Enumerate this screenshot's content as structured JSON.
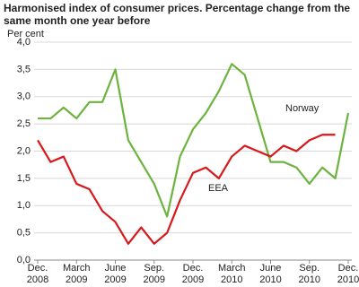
{
  "chart_data": {
    "type": "line",
    "title": "Harmonised index of consumer prices. Percentage change from the same month one year before",
    "y_label": "Per cent",
    "categories": [
      "Dec.\n2008",
      null,
      null,
      "March\n2009",
      null,
      null,
      "June\n2009",
      null,
      null,
      "Sep.\n2009",
      null,
      null,
      "Dec.\n2009",
      null,
      null,
      "March\n2010",
      null,
      null,
      "June\n2010",
      null,
      null,
      "Sep.\n2010",
      null,
      null,
      "Dec.\n2010"
    ],
    "series": [
      {
        "name": "Norway",
        "color": "#6cb33f",
        "values": [
          2.6,
          2.6,
          2.8,
          2.6,
          2.9,
          2.9,
          3.5,
          2.2,
          1.8,
          1.4,
          0.8,
          1.9,
          2.4,
          2.7,
          3.1,
          3.6,
          3.4,
          2.6,
          1.8,
          1.8,
          1.7,
          1.4,
          1.7,
          1.5,
          2.7
        ]
      },
      {
        "name": "EEA",
        "color": "#d7191c",
        "values": [
          2.2,
          1.8,
          1.9,
          1.4,
          1.3,
          0.9,
          0.7,
          0.3,
          0.6,
          0.3,
          0.5,
          1.1,
          1.6,
          1.7,
          1.5,
          1.9,
          2.1,
          2.0,
          1.9,
          2.1,
          2.0,
          2.2,
          2.3,
          2.3,
          null
        ]
      }
    ],
    "ylim": [
      0,
      4
    ],
    "yticks": [
      {
        "value": 0,
        "label": "0,0"
      },
      {
        "value": 0.5,
        "label": "0,5"
      },
      {
        "value": 1,
        "label": "1,0"
      },
      {
        "value": 1.5,
        "label": "1,5"
      },
      {
        "value": 2,
        "label": "2,0"
      },
      {
        "value": 2.5,
        "label": "2,5"
      },
      {
        "value": 3,
        "label": "3,0"
      },
      {
        "value": 3.5,
        "label": "3,5"
      },
      {
        "value": 4,
        "label": "4,0"
      }
    ],
    "grid": true
  }
}
